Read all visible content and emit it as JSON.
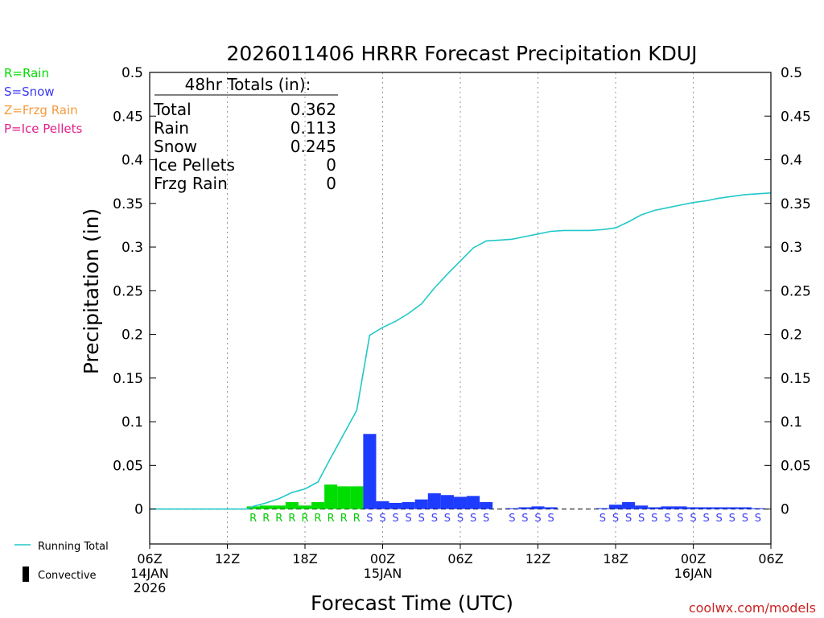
{
  "chart_data": {
    "type": "bar",
    "title": "2026011406 HRRR Forecast Precipitation KDUJ",
    "xlabel": "Forecast Time (UTC)",
    "ylabel": "Precipitation (in)",
    "ylim": [
      -0.04,
      0.5
    ],
    "xlim": [
      0,
      48
    ],
    "yticks": [
      0,
      0.05,
      0.1,
      0.15,
      0.2,
      0.25,
      0.3,
      0.35,
      0.4,
      0.45,
      0.5
    ],
    "ytick_labels": [
      "0",
      "0.05",
      "0.1",
      "0.15",
      "0.2",
      "0.25",
      "0.3",
      "0.35",
      "0.4",
      "0.45",
      "0.5"
    ],
    "xticks": [
      {
        "x": 0,
        "lines": [
          "06Z",
          "14JAN",
          "2026"
        ]
      },
      {
        "x": 6,
        "lines": [
          "12Z"
        ]
      },
      {
        "x": 12,
        "lines": [
          "18Z"
        ]
      },
      {
        "x": 18,
        "lines": [
          "00Z",
          "15JAN"
        ]
      },
      {
        "x": 24,
        "lines": [
          "06Z"
        ]
      },
      {
        "x": 30,
        "lines": [
          "12Z"
        ]
      },
      {
        "x": 36,
        "lines": [
          "18Z"
        ]
      },
      {
        "x": 42,
        "lines": [
          "00Z",
          "16JAN"
        ]
      },
      {
        "x": 48,
        "lines": [
          "06Z"
        ]
      }
    ],
    "grid": "vertical-dotted",
    "legend": [
      {
        "label": "R=Rain",
        "color": "#00dd00"
      },
      {
        "label": "S=Snow",
        "color": "#3b3bf5"
      },
      {
        "label": "Z=Frzg Rain",
        "color": "#f59a3b"
      },
      {
        "label": "P=Ice Pellets",
        "color": "#e0208a"
      }
    ],
    "bottom_legend": [
      {
        "label": "Running Total",
        "kind": "line",
        "color": "#22c8c8"
      },
      {
        "label": "Convective",
        "kind": "bar",
        "color": "#000000"
      }
    ],
    "totals_box": {
      "title": "48hr Totals (in):",
      "rows": [
        {
          "label": "Total",
          "value": "0.362"
        },
        {
          "label": "Rain",
          "value": "0.113"
        },
        {
          "label": "Snow",
          "value": "0.245"
        },
        {
          "label": "Ice Pellets",
          "value": "0"
        },
        {
          "label": "Frzg Rain",
          "value": "0"
        }
      ]
    },
    "series": [
      {
        "kind": "bar",
        "x": [
          8,
          9,
          10,
          11,
          12,
          13,
          14,
          15,
          16,
          17,
          18,
          19,
          20,
          21,
          22,
          23,
          24,
          25,
          26,
          28,
          29,
          30,
          31,
          35,
          36,
          37,
          38,
          39,
          40,
          41,
          42,
          43,
          44,
          45,
          46,
          47
        ],
        "values": [
          0.003,
          0.004,
          0.004,
          0.008,
          0.004,
          0.008,
          0.028,
          0.026,
          0.026,
          0.086,
          0.009,
          0.007,
          0.008,
          0.011,
          0.018,
          0.016,
          0.014,
          0.015,
          0.008,
          0.001,
          0.002,
          0.003,
          0.002,
          0.001,
          0.005,
          0.008,
          0.004,
          0.002,
          0.003,
          0.003,
          0.002,
          0.002,
          0.002,
          0.002,
          0.002,
          0.001
        ],
        "ptype": [
          "R",
          "R",
          "R",
          "R",
          "R",
          "R",
          "R",
          "R",
          "R",
          "S",
          "S",
          "S",
          "S",
          "S",
          "S",
          "S",
          "S",
          "S",
          "S",
          "S",
          "S",
          "S",
          "S",
          "S",
          "S",
          "S",
          "S",
          "S",
          "S",
          "S",
          "S",
          "S",
          "S",
          "S",
          "S",
          "S"
        ]
      },
      {
        "kind": "line",
        "x": [
          0,
          4,
          6,
          7,
          7.6,
          8,
          9,
          10,
          11,
          12,
          13,
          14,
          15,
          16,
          17,
          18,
          19,
          20,
          21,
          22,
          23,
          24,
          25,
          26,
          27,
          28,
          29,
          30,
          31,
          32,
          33,
          34,
          35,
          36,
          37,
          38,
          39,
          40,
          41,
          42,
          43,
          44,
          45,
          46,
          47,
          48
        ],
        "values": [
          0,
          0,
          0,
          0,
          0,
          0.003,
          0.007,
          0.012,
          0.019,
          0.023,
          0.031,
          0.059,
          0.086,
          0.113,
          0.199,
          0.208,
          0.215,
          0.224,
          0.235,
          0.253,
          0.269,
          0.284,
          0.299,
          0.307,
          0.308,
          0.309,
          0.312,
          0.315,
          0.318,
          0.319,
          0.319,
          0.319,
          0.32,
          0.322,
          0.329,
          0.337,
          0.342,
          0.345,
          0.348,
          0.351,
          0.353,
          0.356,
          0.358,
          0.36,
          0.361,
          0.362
        ]
      }
    ]
  },
  "footer": {
    "credit": "coolwx.com/models"
  },
  "colors": {
    "rain": "#00dd00",
    "snow": "#1e3cff",
    "running_total": "#22c8c8",
    "rain_label": "#00cc00",
    "snow_label": "#3b3bf5"
  }
}
